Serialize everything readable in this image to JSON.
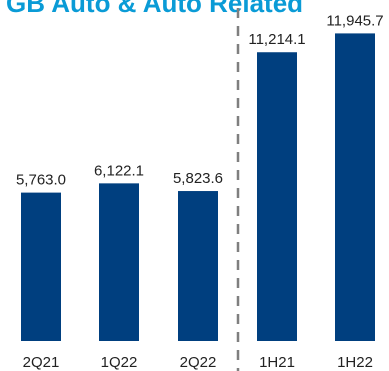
{
  "chart_data": {
    "type": "bar",
    "title": "GB Auto & Auto Related",
    "categories": [
      "2Q21",
      "1Q22",
      "2Q22",
      "1H21",
      "1H22"
    ],
    "values": [
      5763.0,
      6122.1,
      5823.6,
      11214.1,
      11945.7
    ],
    "value_labels": [
      "5,763.0",
      "6,122.1",
      "5,823.6",
      "11,214.1",
      "11,945.7"
    ],
    "groups": [
      {
        "categories": [
          "2Q21",
          "1Q22",
          "2Q22"
        ]
      },
      {
        "categories": [
          "1H21",
          "1H22"
        ]
      }
    ],
    "separator": "dashed vertical line between 2Q22 and 1H21",
    "colors": {
      "bar": "#003f7f",
      "title": "#0a9bd6",
      "separator": "#7f7f7f",
      "text": "#222222"
    },
    "ylim": [
      0,
      12000
    ],
    "grid": false,
    "legend": "none"
  }
}
